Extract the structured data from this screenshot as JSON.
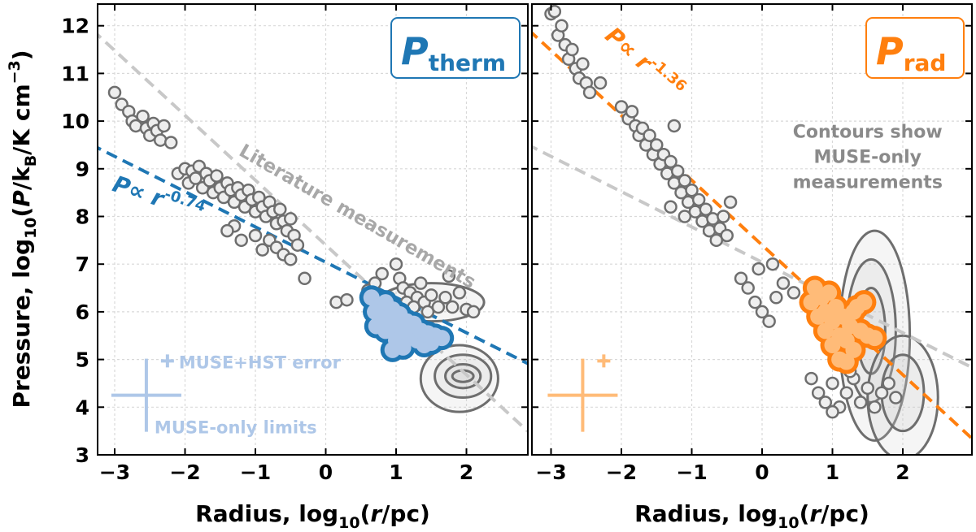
{
  "chart_data": [
    {
      "type": "scatter",
      "panel": "left",
      "badge": {
        "main": "P",
        "sub": "therm",
        "color": "#1f77b4"
      },
      "xlabel": {
        "pre": "Radius, log",
        "sub": "10",
        "post": "(r/pc)"
      },
      "ylabel": {
        "pre": "Pressure, log",
        "sub": "10",
        "mid": "(P/k",
        "sub2": "B",
        "post": "/K cm",
        "sup": "−3",
        "end": ")"
      },
      "xlim": [
        -3.25,
        3.0
      ],
      "ylim": [
        3.0,
        12.5
      ],
      "xticks": [
        -3,
        -2,
        -1,
        0,
        1,
        2
      ],
      "xtick_labels": [
        "−3",
        "−2",
        "−1",
        "0",
        "1",
        "2"
      ],
      "yticks": [
        3,
        4,
        5,
        6,
        7,
        8,
        9,
        10,
        11,
        12
      ],
      "ytick_labels": [
        "3",
        "4",
        "5",
        "6",
        "7",
        "8",
        "9",
        "10",
        "11",
        "12"
      ],
      "grid": true,
      "fits": [
        {
          "label_pre": "P∝ r",
          "label_exp": "-0.74",
          "slope": -0.74,
          "x_at": 0.0,
          "y_at": 7.04,
          "color": "#1f77b4"
        },
        {
          "label": "Literature measurements",
          "slope": -1.36,
          "x_at": 0.0,
          "y_at": 7.4,
          "color": "#c8c8c8"
        }
      ],
      "literature_points": [
        [
          -3.0,
          10.6
        ],
        [
          -2.9,
          10.35
        ],
        [
          -2.8,
          10.2
        ],
        [
          -2.75,
          10.0
        ],
        [
          -2.7,
          9.9
        ],
        [
          -2.6,
          10.1
        ],
        [
          -2.55,
          9.85
        ],
        [
          -2.5,
          9.7
        ],
        [
          -2.45,
          9.95
        ],
        [
          -2.4,
          9.8
        ],
        [
          -2.35,
          9.6
        ],
        [
          -2.3,
          9.9
        ],
        [
          -2.2,
          9.55
        ],
        [
          -2.1,
          8.9
        ],
        [
          -2.0,
          9.0
        ],
        [
          -1.95,
          8.7
        ],
        [
          -1.9,
          8.95
        ],
        [
          -1.85,
          8.8
        ],
        [
          -1.8,
          9.05
        ],
        [
          -1.75,
          8.6
        ],
        [
          -1.7,
          8.9
        ],
        [
          -1.65,
          8.75
        ],
        [
          -1.6,
          8.5
        ],
        [
          -1.55,
          8.85
        ],
        [
          -1.5,
          8.6
        ],
        [
          -1.45,
          8.4
        ],
        [
          -1.4,
          8.7
        ],
        [
          -1.35,
          8.55
        ],
        [
          -1.3,
          8.3
        ],
        [
          -1.25,
          8.6
        ],
        [
          -1.2,
          8.45
        ],
        [
          -1.15,
          8.2
        ],
        [
          -1.1,
          8.55
        ],
        [
          -1.05,
          8.35
        ],
        [
          -1.0,
          8.1
        ],
        [
          -0.95,
          8.4
        ],
        [
          -0.9,
          8.2
        ],
        [
          -0.85,
          8.0
        ],
        [
          -0.8,
          8.3
        ],
        [
          -0.75,
          8.1
        ],
        [
          -0.7,
          7.85
        ],
        [
          -0.65,
          8.15
        ],
        [
          -0.6,
          7.9
        ],
        [
          -0.55,
          7.7
        ],
        [
          -0.5,
          7.95
        ],
        [
          -0.45,
          7.6
        ],
        [
          -0.4,
          7.4
        ],
        [
          -1.3,
          7.8
        ],
        [
          -1.2,
          7.5
        ],
        [
          -1.0,
          7.6
        ],
        [
          -0.9,
          7.3
        ],
        [
          -0.8,
          7.5
        ],
        [
          -0.7,
          7.35
        ],
        [
          -0.6,
          7.2
        ],
        [
          -0.5,
          7.1
        ],
        [
          -1.4,
          7.7
        ],
        [
          -0.3,
          6.7
        ],
        [
          0.15,
          6.2
        ],
        [
          0.3,
          6.25
        ],
        [
          0.6,
          6.45
        ],
        [
          0.7,
          6.6
        ],
        [
          0.8,
          6.8
        ],
        [
          1.0,
          7.0
        ],
        [
          1.05,
          6.7
        ],
        [
          1.1,
          6.5
        ],
        [
          1.2,
          6.4
        ],
        [
          1.3,
          6.3
        ],
        [
          1.35,
          6.6
        ],
        [
          1.4,
          6.2
        ],
        [
          1.5,
          6.35
        ],
        [
          1.6,
          6.1
        ],
        [
          1.7,
          6.3
        ],
        [
          1.75,
          6.75
        ],
        [
          1.8,
          6.1
        ],
        [
          1.9,
          6.4
        ],
        [
          2.0,
          6.05
        ],
        [
          2.1,
          6.0
        ],
        [
          1.15,
          6.2
        ],
        [
          1.25,
          6.1
        ],
        [
          1.45,
          6.0
        ],
        [
          0.9,
          6.3
        ]
      ],
      "muse_points": [
        [
          0.65,
          6.3
        ],
        [
          0.7,
          6.0
        ],
        [
          0.72,
          5.7
        ],
        [
          0.75,
          6.1
        ],
        [
          0.8,
          5.9
        ],
        [
          0.85,
          6.2
        ],
        [
          0.85,
          5.6
        ],
        [
          0.9,
          5.85
        ],
        [
          0.95,
          6.05
        ],
        [
          1.0,
          5.7
        ],
        [
          1.0,
          5.4
        ],
        [
          1.05,
          5.95
        ],
        [
          1.1,
          5.6
        ],
        [
          1.15,
          5.8
        ],
        [
          1.2,
          5.5
        ],
        [
          1.25,
          5.75
        ],
        [
          1.3,
          5.4
        ],
        [
          1.35,
          5.6
        ],
        [
          1.4,
          5.3
        ],
        [
          1.45,
          5.55
        ],
        [
          1.5,
          5.35
        ],
        [
          1.55,
          5.5
        ],
        [
          1.65,
          5.45
        ],
        [
          0.95,
          5.2
        ],
        [
          1.1,
          5.25
        ]
      ],
      "contours": [
        {
          "cx": 1.9,
          "cy": 4.6,
          "rx": 0.55,
          "ry": 0.7
        },
        {
          "cx": 1.95,
          "cy": 4.65,
          "rx": 0.4,
          "ry": 0.45
        },
        {
          "cx": 1.95,
          "cy": 4.65,
          "rx": 0.25,
          "ry": 0.25
        },
        {
          "cx": 1.95,
          "cy": 4.65,
          "rx": 0.15,
          "ry": 0.12
        },
        {
          "cx": 1.5,
          "cy": 6.2,
          "rx": 0.75,
          "ry": 0.4
        }
      ],
      "errors": {
        "label_hst": "MUSE+HST error",
        "label_muse": "MUSE-only limits",
        "color": "#aec7e8"
      }
    },
    {
      "type": "scatter",
      "panel": "right",
      "badge": {
        "main": "P",
        "sub": "rad",
        "color": "#ff7f0e"
      },
      "xlabel": {
        "pre": "Radius, log",
        "sub": "10",
        "post": "(r/pc)"
      },
      "xlim": [
        -3.25,
        3.0
      ],
      "ylim": [
        3.0,
        12.5
      ],
      "xticks": [
        -3,
        -2,
        -1,
        0,
        1,
        2
      ],
      "xtick_labels": [
        "−3",
        "−2",
        "−1",
        "0",
        "1",
        "2"
      ],
      "grid": true,
      "fits": [
        {
          "label_pre": "P∝ r",
          "label_exp": "-1.36",
          "slope": -1.36,
          "x_at": 0.0,
          "y_at": 7.4,
          "color": "#ff7f0e"
        },
        {
          "slope": -0.74,
          "x_at": 0.0,
          "y_at": 7.04,
          "color": "#c8c8c8"
        }
      ],
      "note": [
        "Contours show",
        "MUSE-only",
        "measurements"
      ],
      "literature_points": [
        [
          -3.0,
          12.25
        ],
        [
          -2.95,
          12.3
        ],
        [
          -2.9,
          11.8
        ],
        [
          -2.85,
          12.0
        ],
        [
          -2.8,
          11.6
        ],
        [
          -2.75,
          11.3
        ],
        [
          -2.7,
          11.5
        ],
        [
          -2.65,
          11.1
        ],
        [
          -2.6,
          10.9
        ],
        [
          -2.55,
          11.2
        ],
        [
          -2.5,
          10.8
        ],
        [
          -2.45,
          10.6
        ],
        [
          -2.3,
          10.8
        ],
        [
          -2.0,
          10.3
        ],
        [
          -1.9,
          10.05
        ],
        [
          -1.85,
          10.2
        ],
        [
          -1.8,
          9.9
        ],
        [
          -1.75,
          9.7
        ],
        [
          -1.7,
          9.85
        ],
        [
          -1.65,
          9.5
        ],
        [
          -1.6,
          9.7
        ],
        [
          -1.55,
          9.3
        ],
        [
          -1.5,
          9.5
        ],
        [
          -1.45,
          9.1
        ],
        [
          -1.4,
          9.3
        ],
        [
          -1.35,
          8.9
        ],
        [
          -1.3,
          9.15
        ],
        [
          -1.25,
          8.7
        ],
        [
          -1.2,
          8.95
        ],
        [
          -1.15,
          8.5
        ],
        [
          -1.1,
          8.75
        ],
        [
          -1.05,
          8.3
        ],
        [
          -1.0,
          8.55
        ],
        [
          -0.95,
          8.1
        ],
        [
          -0.9,
          8.35
        ],
        [
          -0.85,
          7.9
        ],
        [
          -0.8,
          8.15
        ],
        [
          -0.75,
          7.7
        ],
        [
          -0.7,
          7.95
        ],
        [
          -0.65,
          7.5
        ],
        [
          -0.6,
          7.75
        ],
        [
          -0.55,
          8.0
        ],
        [
          -0.5,
          7.6
        ],
        [
          -1.25,
          9.9
        ],
        [
          -1.1,
          8.0
        ],
        [
          -1.3,
          8.2
        ],
        [
          -0.45,
          8.3
        ],
        [
          -0.3,
          6.7
        ],
        [
          -0.2,
          6.5
        ],
        [
          -0.1,
          6.2
        ],
        [
          0.0,
          6.0
        ],
        [
          0.1,
          5.8
        ],
        [
          0.2,
          6.3
        ],
        [
          0.3,
          6.6
        ],
        [
          0.45,
          6.4
        ],
        [
          -0.05,
          6.9
        ],
        [
          0.15,
          7.0
        ],
        [
          0.7,
          4.6
        ],
        [
          0.8,
          4.3
        ],
        [
          0.9,
          4.1
        ],
        [
          1.0,
          4.5
        ],
        [
          1.1,
          4.0
        ],
        [
          1.2,
          4.3
        ],
        [
          1.3,
          4.6
        ],
        [
          1.4,
          4.1
        ],
        [
          1.5,
          4.4
        ],
        [
          1.6,
          4.0
        ],
        [
          1.7,
          4.3
        ],
        [
          1.8,
          4.5
        ],
        [
          1.9,
          4.2
        ],
        [
          1.25,
          4.75
        ],
        [
          1.0,
          3.9
        ]
      ],
      "muse_points": [
        [
          0.7,
          6.2
        ],
        [
          0.75,
          6.5
        ],
        [
          0.8,
          5.9
        ],
        [
          0.85,
          6.3
        ],
        [
          0.9,
          6.0
        ],
        [
          0.9,
          5.6
        ],
        [
          0.95,
          6.4
        ],
        [
          1.0,
          5.8
        ],
        [
          1.0,
          5.3
        ],
        [
          1.05,
          6.1
        ],
        [
          1.1,
          5.5
        ],
        [
          1.1,
          5.0
        ],
        [
          1.15,
          5.9
        ],
        [
          1.2,
          5.4
        ],
        [
          1.2,
          4.95
        ],
        [
          1.25,
          5.7
        ],
        [
          1.3,
          5.2
        ],
        [
          1.35,
          6.1
        ],
        [
          1.4,
          5.6
        ],
        [
          1.45,
          6.2
        ],
        [
          1.5,
          5.5
        ],
        [
          1.6,
          5.45
        ],
        [
          1.3,
          6.0
        ]
      ],
      "contours": [
        {
          "cx": 1.6,
          "cy": 5.5,
          "rx": 0.5,
          "ry": 2.2
        },
        {
          "cx": 1.55,
          "cy": 5.6,
          "rx": 0.35,
          "ry": 1.5
        },
        {
          "cx": 1.55,
          "cy": 5.6,
          "rx": 0.2,
          "ry": 0.9
        },
        {
          "cx": 2.0,
          "cy": 4.2,
          "rx": 0.5,
          "ry": 1.3
        },
        {
          "cx": 2.0,
          "cy": 4.3,
          "rx": 0.3,
          "ry": 0.8
        }
      ],
      "errors": {
        "color": "#ffbb78"
      }
    }
  ]
}
